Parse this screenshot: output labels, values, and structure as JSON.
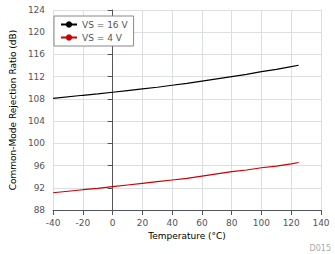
{
  "chart_data": {
    "type": "line",
    "xlabel": "Temperature (°C)",
    "ylabel": "Common-Mode Rejection Ratio (dB)",
    "xlim": [
      -40,
      140
    ],
    "ylim": [
      88,
      124
    ],
    "xticks": [
      -40,
      -20,
      0,
      20,
      40,
      60,
      80,
      100,
      120,
      140
    ],
    "yticks": [
      88,
      92,
      96,
      100,
      104,
      108,
      112,
      116,
      120,
      124
    ],
    "x": [
      -40,
      -20,
      -10,
      0,
      10,
      20,
      30,
      40,
      50,
      60,
      70,
      80,
      90,
      100,
      110,
      120,
      125
    ],
    "series": [
      {
        "name": "VS = 16 V",
        "color": "#000000",
        "values": [
          108.1,
          108.65,
          108.9,
          109.2,
          109.5,
          109.8,
          110.1,
          110.45,
          110.8,
          111.2,
          111.6,
          112.0,
          112.4,
          112.9,
          113.3,
          113.8,
          114.05
        ]
      },
      {
        "name": "VS = 4 V",
        "color": "#cc0000",
        "values": [
          91.1,
          91.65,
          91.9,
          92.2,
          92.5,
          92.8,
          93.1,
          93.4,
          93.7,
          94.1,
          94.5,
          94.9,
          95.2,
          95.6,
          95.9,
          96.3,
          96.55
        ]
      }
    ],
    "grid": true,
    "legend": "upper left",
    "annotations": [
      "D015"
    ]
  }
}
